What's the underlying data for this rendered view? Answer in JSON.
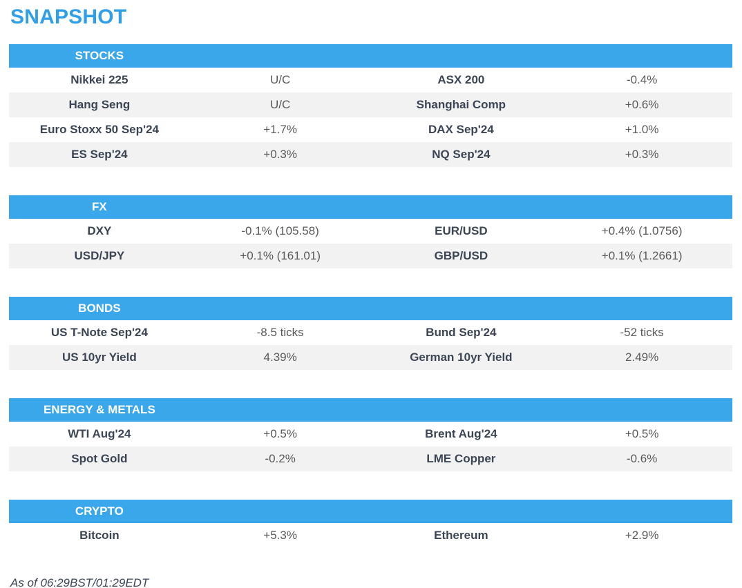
{
  "page": {
    "title": "SNAPSHOT",
    "footer": "As of 06:29BST/01:29EDT"
  },
  "theme": {
    "title_blue": "#2e9fe8",
    "header_bar_blue": "#3aa7eb",
    "alt_row_gray": "#f2f2f2",
    "instrument_text": "#3b4554",
    "value_text": "#595959"
  },
  "sections": [
    {
      "header": "STOCKS",
      "rows": [
        {
          "left": {
            "instrument": "Nikkei 225",
            "change": "U/C"
          },
          "right": {
            "instrument": "ASX 200",
            "change": "-0.4%"
          }
        },
        {
          "left": {
            "instrument": "Hang Seng",
            "change": "U/C"
          },
          "right": {
            "instrument": "Shanghai Comp",
            "change": "+0.6%"
          }
        },
        {
          "left": {
            "instrument": "Euro Stoxx 50 Sep'24",
            "change": "+1.7%"
          },
          "right": {
            "instrument": "DAX Sep'24",
            "change": "+1.0%"
          }
        },
        {
          "left": {
            "instrument": "ES Sep'24",
            "change": "+0.3%"
          },
          "right": {
            "instrument": "NQ Sep'24",
            "change": "+0.3%"
          }
        }
      ]
    },
    {
      "header": "FX",
      "rows": [
        {
          "left": {
            "instrument": "DXY",
            "change": "-0.1% (105.58)"
          },
          "right": {
            "instrument": "EUR/USD",
            "change": "+0.4% (1.0756)"
          }
        },
        {
          "left": {
            "instrument": "USD/JPY",
            "change": "+0.1% (161.01)"
          },
          "right": {
            "instrument": "GBP/USD",
            "change": "+0.1% (1.2661)"
          }
        }
      ]
    },
    {
      "header": "BONDS",
      "rows": [
        {
          "left": {
            "instrument": "US T-Note Sep'24",
            "change": "-8.5 ticks"
          },
          "right": {
            "instrument": "Bund Sep'24",
            "change": "-52 ticks"
          }
        },
        {
          "left": {
            "instrument": "US 10yr Yield",
            "change": "4.39%"
          },
          "right": {
            "instrument": "German 10yr Yield",
            "change": "2.49%"
          }
        }
      ]
    },
    {
      "header": "ENERGY & METALS",
      "rows": [
        {
          "left": {
            "instrument": "WTI Aug'24",
            "change": "+0.5%"
          },
          "right": {
            "instrument": "Brent Aug'24",
            "change": "+0.5%"
          }
        },
        {
          "left": {
            "instrument": "Spot Gold",
            "change": "-0.2%"
          },
          "right": {
            "instrument": "LME Copper",
            "change": "-0.6%"
          }
        }
      ]
    },
    {
      "header": "CRYPTO",
      "rows": [
        {
          "left": {
            "instrument": "Bitcoin",
            "change": "+5.3%"
          },
          "right": {
            "instrument": "Ethereum",
            "change": "+2.9%"
          }
        }
      ]
    }
  ]
}
